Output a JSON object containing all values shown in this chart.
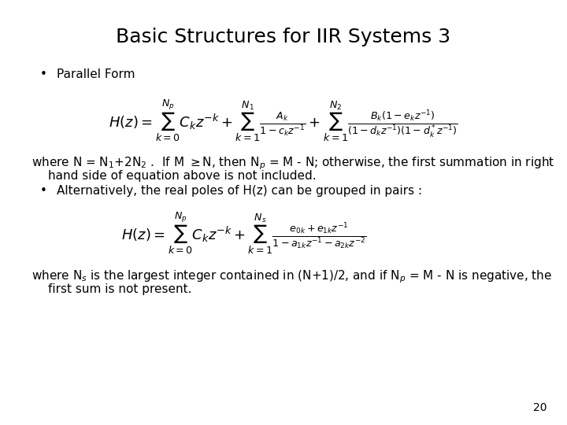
{
  "title": "Basic Structures for IIR Systems 3",
  "title_fontsize": 18,
  "background_color": "#ffffff",
  "text_color": "#000000",
  "bullet1_label": "Parallel Form",
  "para1_line1": "where N = N",
  "para1_line1b": "+2N",
  "para1_line1c": " .  If M ≥N, then N",
  "para1_line1d": " = M - N; otherwise, the first summation in right",
  "para1_line2": "hand side of equation above is not included.",
  "bullet2_label": "Alternatively, the real poles of H(z) can be grouped in pairs :",
  "para2_line1": "where N",
  "para2_line1b": " is the largest integer contained in (N+1)/2, and if N",
  "para2_line1c": " = M - N is negative, the",
  "para2_line2": "first sum is not present.",
  "page_num": "20",
  "body_fontsize": 11,
  "eq1_fontsize": 13,
  "eq2_fontsize": 13
}
